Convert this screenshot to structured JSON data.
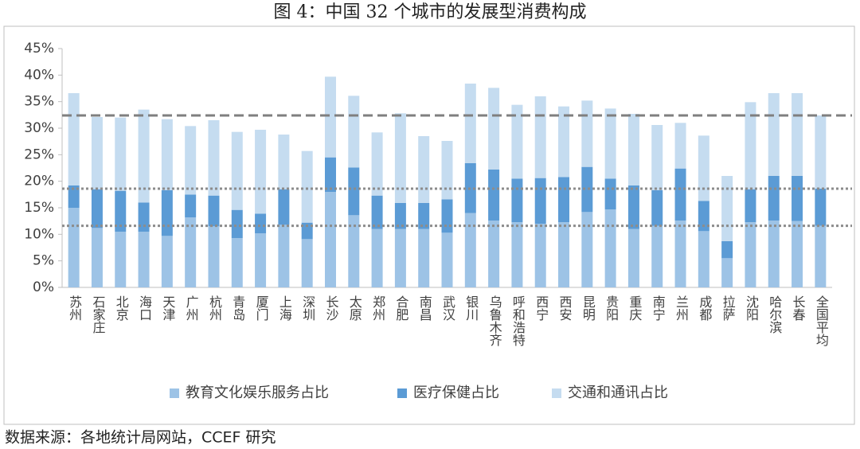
{
  "chart_data": {
    "type": "stacked_bar",
    "title": "图 4：中国 32 个城市的发展型消费构成",
    "source": "数据来源：各地统计局网站，CCEF 研究",
    "categories": [
      "苏州",
      "石家庄",
      "北京",
      "海口",
      "天津",
      "广州",
      "杭州",
      "青岛",
      "厦门",
      "上海",
      "深圳",
      "长沙",
      "太原",
      "郑州",
      "合肥",
      "南昌",
      "武汉",
      "银川",
      "乌鲁木齐",
      "呼和浩特",
      "西宁",
      "西安",
      "昆明",
      "贵阳",
      "重庆",
      "南宁",
      "兰州",
      "成都",
      "拉萨",
      "沈阳",
      "哈尔滨",
      "长春",
      "全国平均"
    ],
    "series": [
      {
        "name": "教育文化娱乐服务占比",
        "color": "#9dc3e6",
        "values": [
          15.0,
          11.2,
          10.5,
          10.5,
          9.7,
          13.2,
          11.5,
          9.3,
          10.2,
          11.8,
          9.1,
          18.0,
          13.6,
          11.0,
          11.0,
          11.0,
          10.3,
          14.0,
          12.6,
          12.3,
          12.0,
          12.3,
          14.2,
          14.7,
          11.0,
          11.6,
          12.6,
          10.6,
          5.5,
          12.3,
          12.6,
          12.5,
          11.6
        ]
      },
      {
        "name": "医疗保健占比",
        "color": "#5b9bd5",
        "values": [
          4.2,
          7.3,
          7.7,
          5.5,
          8.6,
          4.3,
          5.8,
          5.3,
          3.7,
          6.7,
          3.1,
          6.5,
          9.0,
          6.3,
          4.9,
          4.9,
          6.3,
          9.4,
          9.6,
          8.2,
          8.6,
          8.5,
          8.5,
          5.8,
          8.2,
          6.7,
          9.8,
          5.7,
          3.2,
          6.2,
          8.4,
          8.5,
          7.0
        ]
      },
      {
        "name": "交通和通讯占比",
        "color": "#c5dcf0",
        "values": [
          17.4,
          13.6,
          13.8,
          17.5,
          13.4,
          12.9,
          14.2,
          14.7,
          15.8,
          10.3,
          13.5,
          15.2,
          13.5,
          11.9,
          16.9,
          12.6,
          11.0,
          15.0,
          15.4,
          13.9,
          15.4,
          13.3,
          12.5,
          13.2,
          13.5,
          12.3,
          8.6,
          12.3,
          12.3,
          16.4,
          15.6,
          15.6,
          13.8
        ]
      }
    ],
    "reference_lines": [
      {
        "value": 32.4,
        "style": "dashed"
      },
      {
        "value": 18.6,
        "style": "dotted"
      },
      {
        "value": 11.6,
        "style": "dotted"
      }
    ],
    "ylim": [
      0,
      45
    ],
    "yticks": [
      {
        "value": 0,
        "label": "0%"
      },
      {
        "value": 5,
        "label": "5%"
      },
      {
        "value": 10,
        "label": "10%"
      },
      {
        "value": 15,
        "label": "15%"
      },
      {
        "value": 20,
        "label": "20%"
      },
      {
        "value": 25,
        "label": "25%"
      },
      {
        "value": 30,
        "label": "30%"
      },
      {
        "value": 35,
        "label": "35%"
      },
      {
        "value": 40,
        "label": "40%"
      },
      {
        "value": 45,
        "label": "45%"
      }
    ],
    "legend": "bottom"
  }
}
